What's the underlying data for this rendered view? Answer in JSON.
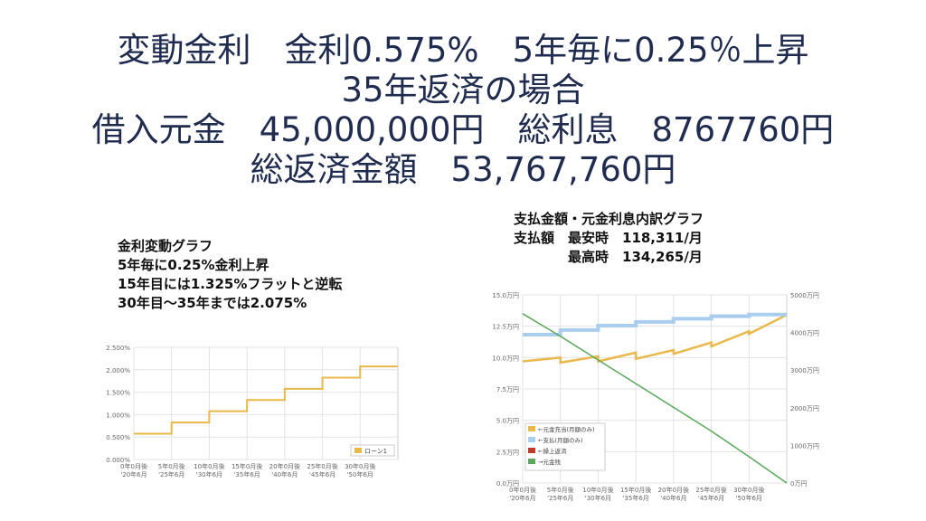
{
  "title": {
    "line1": "変動金利　金利0.575%　5年毎に0.25％上昇",
    "line2": "35年返済の場合",
    "line3": "借入元金　45,000,000円　総利息　8767760円",
    "line4": "総返済金額　53,767,760円"
  },
  "left_note": {
    "lines": [
      "金利変動グラフ",
      "5年毎に0.25%金利上昇",
      "15年目には1.325%フラットと逆転",
      "30年目〜35年までは2.075%"
    ]
  },
  "right_note": {
    "line1": "支払金額・元金利息内訳グラフ",
    "line2": "支払額　最安時　118,311/月",
    "line3": "　　　　最高時　134,265/月"
  },
  "x_ticks": [
    [
      "0年0月後",
      "'20年6月"
    ],
    [
      "5年0月後",
      "'25年6月"
    ],
    [
      "10年0月後",
      "'30年6月"
    ],
    [
      "15年0月後",
      "'35年6月"
    ],
    [
      "20年0月後",
      "'40年6月"
    ],
    [
      "25年0月後",
      "'45年6月"
    ],
    [
      "30年0月後",
      "'50年6月"
    ]
  ],
  "chart_data": [
    {
      "type": "line",
      "y_ticks": [
        "0.000%",
        "0.500%",
        "1.000%",
        "1.500%",
        "2.000%",
        "2.500%"
      ],
      "ylim": [
        0,
        2.5
      ],
      "xlim": [
        0,
        35
      ],
      "grid": true,
      "legend_position": "bottom-right",
      "series": [
        {
          "name": "ローン1",
          "color": "#e8b84a",
          "x": [
            0,
            5,
            5,
            10,
            10,
            15,
            15,
            20,
            20,
            25,
            25,
            30,
            30,
            35
          ],
          "y": [
            0.575,
            0.575,
            0.825,
            0.825,
            1.075,
            1.075,
            1.325,
            1.325,
            1.575,
            1.575,
            1.825,
            1.825,
            2.075,
            2.075
          ]
        }
      ]
    },
    {
      "type": "line",
      "y_left_ticks": [
        "0.0万円",
        "2.5万円",
        "5.0万円",
        "7.5万円",
        "10.0万円",
        "12.5万円",
        "15.0万円"
      ],
      "y_right_ticks": [
        "0万円",
        "1000万円",
        "2000万円",
        "3000万円",
        "4000万円",
        "5000万円"
      ],
      "ylim_left": [
        0,
        15
      ],
      "ylim_right": [
        0,
        5000
      ],
      "xlim": [
        0,
        35
      ],
      "grid": true,
      "legend_position": "bottom-left",
      "series": [
        {
          "name": "←元金充当(月額のみ)",
          "color": "#e8b84a",
          "axis": "left",
          "x": [
            0,
            5,
            5,
            10,
            10,
            15,
            15,
            20,
            20,
            25,
            25,
            30,
            30,
            35
          ],
          "y": [
            9.7,
            10.0,
            9.6,
            10.1,
            9.7,
            10.4,
            9.9,
            10.6,
            10.3,
            11.2,
            10.9,
            12.1,
            11.9,
            13.4
          ]
        },
        {
          "name": "←支払(月額のみ)",
          "color": "#a9cdee",
          "axis": "left",
          "x": [
            0,
            5,
            5,
            10,
            10,
            15,
            15,
            20,
            20,
            25,
            25,
            30,
            30,
            35
          ],
          "y": [
            11.83,
            11.83,
            12.2,
            12.2,
            12.55,
            12.55,
            12.85,
            12.85,
            13.1,
            13.1,
            13.3,
            13.3,
            13.43,
            13.43
          ]
        },
        {
          "name": "←繰上返済",
          "color": "#c0392b",
          "axis": "left",
          "x": [],
          "y": []
        },
        {
          "name": "→元金残",
          "color": "#5aa85a",
          "axis": "right",
          "x": [
            0,
            5,
            10,
            15,
            20,
            25,
            30,
            35
          ],
          "y": [
            4500,
            3900,
            3270,
            2640,
            2010,
            1380,
            700,
            0
          ]
        }
      ]
    }
  ]
}
